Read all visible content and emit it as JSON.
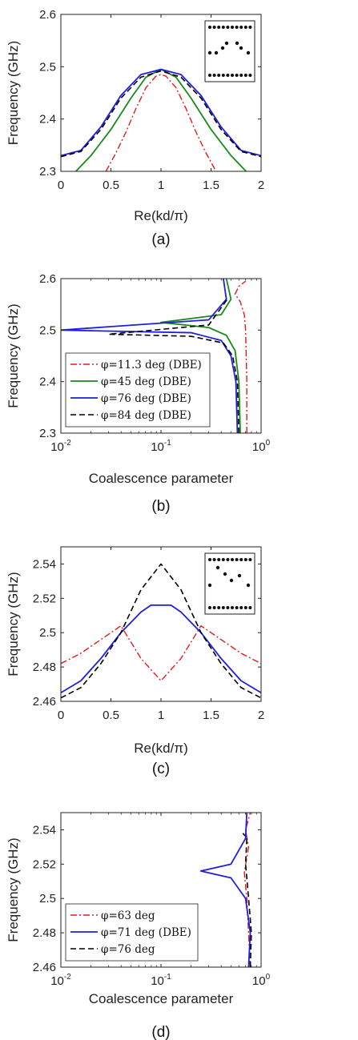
{
  "chart_data": [
    {
      "type": "line",
      "panel": "(a)",
      "xlabel": "Re(kd/π)",
      "ylabel": "Frequency (GHz)",
      "xlim": [
        0,
        2
      ],
      "ylim": [
        2.3,
        2.6
      ],
      "xticks": [
        "0",
        "0.5",
        "1",
        "1.5",
        "2"
      ],
      "yticks": [
        "2.3",
        "2.4",
        "2.5",
        "2.6"
      ],
      "inset": "unit cell with 7 displaced posts (arc shape)",
      "series": [
        {
          "style": "red-dashdot",
          "color": "#e41a1c",
          "x": [
            0.45,
            0.55,
            0.65,
            0.75,
            0.85,
            0.95,
            1.0,
            1.05,
            1.15,
            1.25,
            1.35,
            1.45,
            1.55
          ],
          "y": [
            2.3,
            2.335,
            2.375,
            2.42,
            2.46,
            2.482,
            2.485,
            2.482,
            2.46,
            2.42,
            2.375,
            2.335,
            2.3
          ]
        },
        {
          "style": "green-solid",
          "color": "#1a8a1a",
          "x": [
            0.15,
            0.3,
            0.5,
            0.7,
            0.85,
            1.0,
            1.15,
            1.3,
            1.5,
            1.7,
            1.85
          ],
          "y": [
            2.3,
            2.33,
            2.38,
            2.44,
            2.48,
            2.495,
            2.48,
            2.44,
            2.38,
            2.33,
            2.3
          ]
        },
        {
          "style": "blue-solid",
          "color": "#1f1fdf",
          "x": [
            0.0,
            0.2,
            0.4,
            0.6,
            0.8,
            1.0,
            1.2,
            1.4,
            1.6,
            1.8,
            2.0
          ],
          "y": [
            2.33,
            2.34,
            2.385,
            2.445,
            2.485,
            2.495,
            2.485,
            2.445,
            2.385,
            2.34,
            2.33
          ]
        },
        {
          "style": "black-dashed",
          "color": "#000000",
          "x": [
            0.0,
            0.2,
            0.4,
            0.6,
            0.8,
            1.0,
            1.2,
            1.4,
            1.6,
            1.8,
            2.0
          ],
          "y": [
            2.328,
            2.338,
            2.38,
            2.44,
            2.48,
            2.492,
            2.48,
            2.44,
            2.38,
            2.338,
            2.328
          ]
        }
      ]
    },
    {
      "type": "line",
      "panel": "(b)",
      "xlabel": "Coalescence parameter",
      "ylabel": "Frequency (GHz)",
      "xscale": "log",
      "xlim": [
        0.01,
        1
      ],
      "ylim": [
        2.3,
        2.6
      ],
      "xticks": [
        "10-2",
        "10-1",
        "100"
      ],
      "yticks": [
        "2.3",
        "2.4",
        "2.5",
        "2.6"
      ],
      "legend_position": "lower-left",
      "series": [
        {
          "name": "φ=11.3 deg (DBE)",
          "style": "red-dashdot",
          "color": "#e41a1c",
          "x": [
            0.72,
            0.72,
            0.71,
            0.7,
            0.68,
            0.62,
            0.55,
            0.6,
            0.7
          ],
          "y": [
            2.3,
            2.4,
            2.45,
            2.5,
            2.53,
            2.555,
            2.57,
            2.585,
            2.595
          ]
        },
        {
          "name": "φ=45 deg (DBE)",
          "style": "green-solid",
          "color": "#1a8a1a",
          "x": [
            0.62,
            0.6,
            0.55,
            0.45,
            0.3,
            0.1,
            0.4,
            0.5,
            0.45
          ],
          "y": [
            2.3,
            2.4,
            2.46,
            2.49,
            2.505,
            2.515,
            2.53,
            2.56,
            2.6
          ]
        },
        {
          "name": "φ=76 deg (DBE)",
          "style": "blue-solid",
          "color": "#1f1fdf",
          "x": [
            0.58,
            0.56,
            0.5,
            0.4,
            0.2,
            0.01,
            0.3,
            0.45,
            0.42
          ],
          "y": [
            2.3,
            2.4,
            2.45,
            2.48,
            2.495,
            2.5,
            2.52,
            2.56,
            2.6
          ]
        },
        {
          "name": "φ=84 deg (DBE)",
          "style": "black-dashed",
          "color": "#000000",
          "x": [
            0.6,
            0.58,
            0.52,
            0.42,
            0.2,
            0.03,
            0.3,
            0.46
          ],
          "y": [
            2.3,
            2.4,
            2.45,
            2.475,
            2.488,
            2.492,
            2.51,
            2.56
          ]
        }
      ]
    },
    {
      "type": "line",
      "panel": "(c)",
      "xlabel": "Re(kd/π)",
      "ylabel": "Frequency (GHz)",
      "xlim": [
        0,
        2
      ],
      "ylim": [
        2.46,
        2.55
      ],
      "xticks": [
        "0",
        "0.5",
        "1",
        "1.5",
        "2"
      ],
      "yticks": [
        "2.46",
        "2.48",
        "2.5",
        "2.52",
        "2.54"
      ],
      "inset": "unit cell with 5 displaced posts (V shape)",
      "series": [
        {
          "style": "red-dashdot",
          "color": "#e41a1c",
          "x": [
            0.0,
            0.2,
            0.4,
            0.6,
            0.8,
            1.0,
            1.2,
            1.4,
            1.6,
            1.8,
            2.0
          ],
          "y": [
            2.482,
            2.488,
            2.496,
            2.504,
            2.485,
            2.472,
            2.485,
            2.504,
            2.496,
            2.488,
            2.482
          ]
        },
        {
          "style": "blue-solid",
          "color": "#1f1fdf",
          "x": [
            0.0,
            0.2,
            0.4,
            0.6,
            0.8,
            0.9,
            1.0,
            1.1,
            1.2,
            1.4,
            1.6,
            1.8,
            2.0
          ],
          "y": [
            2.465,
            2.472,
            2.485,
            2.5,
            2.512,
            2.516,
            2.516,
            2.516,
            2.512,
            2.5,
            2.485,
            2.472,
            2.465
          ]
        },
        {
          "style": "black-dashed",
          "color": "#000000",
          "x": [
            0.0,
            0.2,
            0.4,
            0.6,
            0.8,
            1.0,
            1.2,
            1.4,
            1.6,
            1.8,
            2.0
          ],
          "y": [
            2.462,
            2.468,
            2.482,
            2.5,
            2.525,
            2.54,
            2.525,
            2.5,
            2.482,
            2.468,
            2.462
          ]
        }
      ]
    },
    {
      "type": "line",
      "panel": "(d)",
      "xlabel": "Coalescence parameter",
      "ylabel": "Frequency (GHz)",
      "xscale": "log",
      "xlim": [
        0.01,
        1
      ],
      "ylim": [
        2.46,
        2.55
      ],
      "xticks": [
        "10-2",
        "10-1",
        "100"
      ],
      "yticks": [
        "2.46",
        "2.48",
        "2.5",
        "2.52",
        "2.54"
      ],
      "legend_position": "lower-left",
      "series": [
        {
          "name": "φ=63 deg",
          "style": "red-dashdot",
          "color": "#e41a1c",
          "x": [
            0.78,
            0.75,
            0.72,
            0.68,
            0.75,
            0.7,
            0.78
          ],
          "y": [
            2.46,
            2.48,
            2.5,
            2.515,
            2.53,
            2.54,
            2.55
          ]
        },
        {
          "name": "φ=71 deg (DBE)",
          "style": "blue-solid",
          "color": "#1f1fdf",
          "x": [
            0.75,
            0.78,
            0.7,
            0.5,
            0.25,
            0.5,
            0.7,
            0.72
          ],
          "y": [
            2.46,
            2.48,
            2.5,
            2.512,
            2.516,
            2.52,
            2.535,
            2.55
          ]
        },
        {
          "name": "φ=76 deg",
          "style": "black-dashed",
          "color": "#000000",
          "x": [
            0.78,
            0.8,
            0.75,
            0.7,
            0.72,
            0.66
          ],
          "y": [
            2.46,
            2.48,
            2.5,
            2.52,
            2.535,
            2.538
          ]
        }
      ]
    }
  ],
  "captions": [
    "(a)",
    "(b)",
    "(c)",
    "(d)"
  ]
}
